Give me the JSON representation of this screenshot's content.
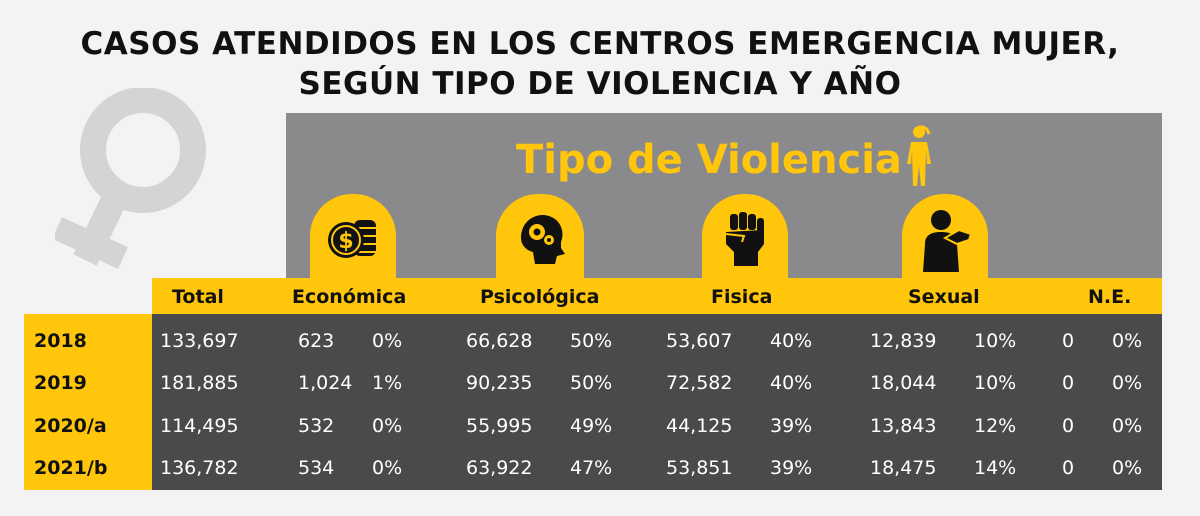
{
  "title_line1": "CASOS ATENDIDOS EN LOS CENTROS EMERGENCIA MUJER,",
  "title_line2": "SEGÚN TIPO DE VIOLENCIA Y AÑO",
  "panel_title": "Tipo de Violencia",
  "colors": {
    "yellow": "#ffc60b",
    "panel_grey": "#8a8a8c",
    "table_dark": "#4a4a4c",
    "venus_grey": "#d4d4d4"
  },
  "icons": [
    "venus-symbol-icon",
    "woman-icon",
    "coins-icon",
    "head-gears-icon",
    "fist-icon",
    "abused-person-icon"
  ],
  "chart_data": {
    "type": "table",
    "columns": [
      "Total",
      "Económica",
      "Psicológica",
      "Fisica",
      "Sexual",
      "N.E."
    ],
    "rows": [
      {
        "year": "2018",
        "total": "133,697",
        "economica": "623",
        "economica_pct": "0%",
        "psicologica": "66,628",
        "psicologica_pct": "50%",
        "fisica": "53,607",
        "fisica_pct": "40%",
        "sexual": "12,839",
        "sexual_pct": "10%",
        "ne": "0",
        "ne_pct": "0%"
      },
      {
        "year": "2019",
        "total": "181,885",
        "economica": "1,024",
        "economica_pct": "1%",
        "psicologica": "90,235",
        "psicologica_pct": "50%",
        "fisica": "72,582",
        "fisica_pct": "40%",
        "sexual": "18,044",
        "sexual_pct": "10%",
        "ne": "0",
        "ne_pct": "0%"
      },
      {
        "year": "2020/a",
        "total": "114,495",
        "economica": "532",
        "economica_pct": "0%",
        "psicologica": "55,995",
        "psicologica_pct": "49%",
        "fisica": "44,125",
        "fisica_pct": "39%",
        "sexual": "13,843",
        "sexual_pct": "12%",
        "ne": "0",
        "ne_pct": "0%"
      },
      {
        "year": "2021/b",
        "total": "136,782",
        "economica": "534",
        "economica_pct": "0%",
        "psicologica": "63,922",
        "psicologica_pct": "47%",
        "fisica": "53,851",
        "fisica_pct": "39%",
        "sexual": "18,475",
        "sexual_pct": "14%",
        "ne": "0",
        "ne_pct": "0%"
      }
    ]
  }
}
